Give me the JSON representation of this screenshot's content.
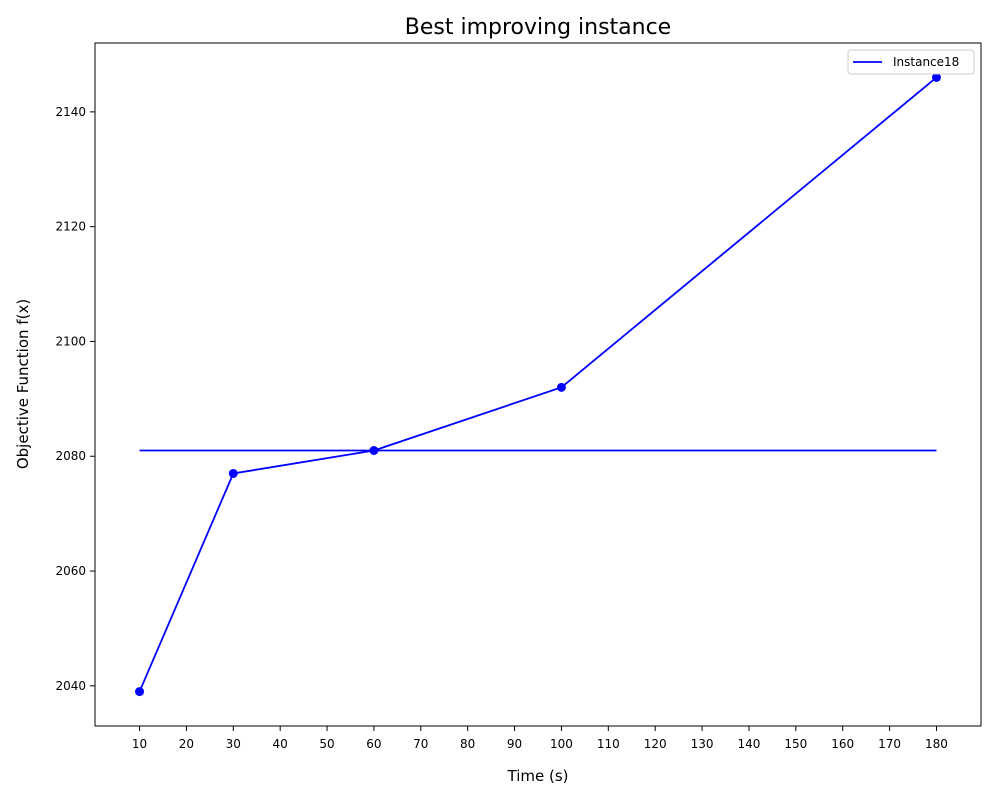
{
  "chart_data": {
    "type": "line",
    "title": "Best improving instance",
    "xlabel": "Time (s)",
    "ylabel": "Objective Function f(x)",
    "xlim": [
      0.5,
      189.5
    ],
    "ylim": [
      2033,
      2152
    ],
    "xticks": [
      10,
      20,
      30,
      40,
      50,
      60,
      70,
      80,
      90,
      100,
      110,
      120,
      130,
      140,
      150,
      160,
      170,
      180
    ],
    "yticks": [
      2040,
      2060,
      2080,
      2100,
      2120,
      2140
    ],
    "grid": false,
    "legend_position": "top-right",
    "series": [
      {
        "name": "Instance18",
        "color": "#0000ff",
        "marker": "circle",
        "x": [
          10,
          30,
          60,
          100,
          180
        ],
        "y": [
          2039,
          2077,
          2081,
          2092,
          2146
        ]
      }
    ],
    "reference_lines": [
      {
        "y": 2081,
        "x_start": 10,
        "x_end": 180,
        "color": "#0000ff"
      }
    ]
  }
}
